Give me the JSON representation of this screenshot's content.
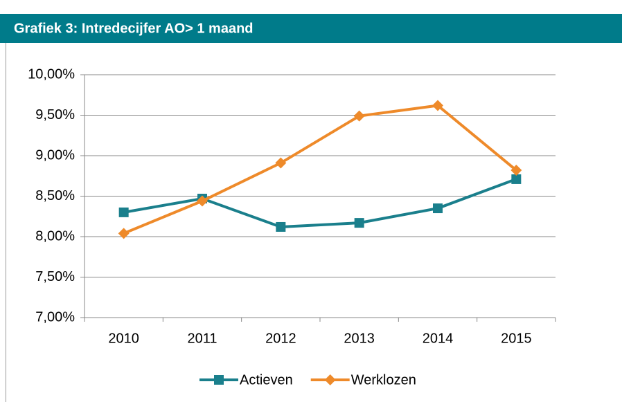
{
  "chart_data": {
    "type": "line",
    "title": "Grafiek 3: Intredecijfer AO> 1 maand",
    "categories": [
      "2010",
      "2011",
      "2012",
      "2013",
      "2014",
      "2015"
    ],
    "series": [
      {
        "name": "Actieven",
        "color": "#1a7f8c",
        "marker": "square",
        "values": [
          8.3,
          8.47,
          8.12,
          8.17,
          8.35,
          8.71
        ]
      },
      {
        "name": "Werklozen",
        "color": "#ee8a2a",
        "marker": "diamond",
        "values": [
          8.04,
          8.44,
          8.91,
          9.49,
          9.62,
          8.82
        ]
      }
    ],
    "ylim": [
      7,
      10
    ],
    "yticks": [
      {
        "value": 7,
        "label": "7,00%"
      },
      {
        "value": 7.5,
        "label": "7,50%"
      },
      {
        "value": 8,
        "label": "8,00%"
      },
      {
        "value": 8.5,
        "label": "8,50%"
      },
      {
        "value": 9,
        "label": "9,00%"
      },
      {
        "value": 9.5,
        "label": "9,50%"
      },
      {
        "value": 10,
        "label": "10,00%"
      }
    ],
    "grid": true,
    "legend": "bottom"
  }
}
